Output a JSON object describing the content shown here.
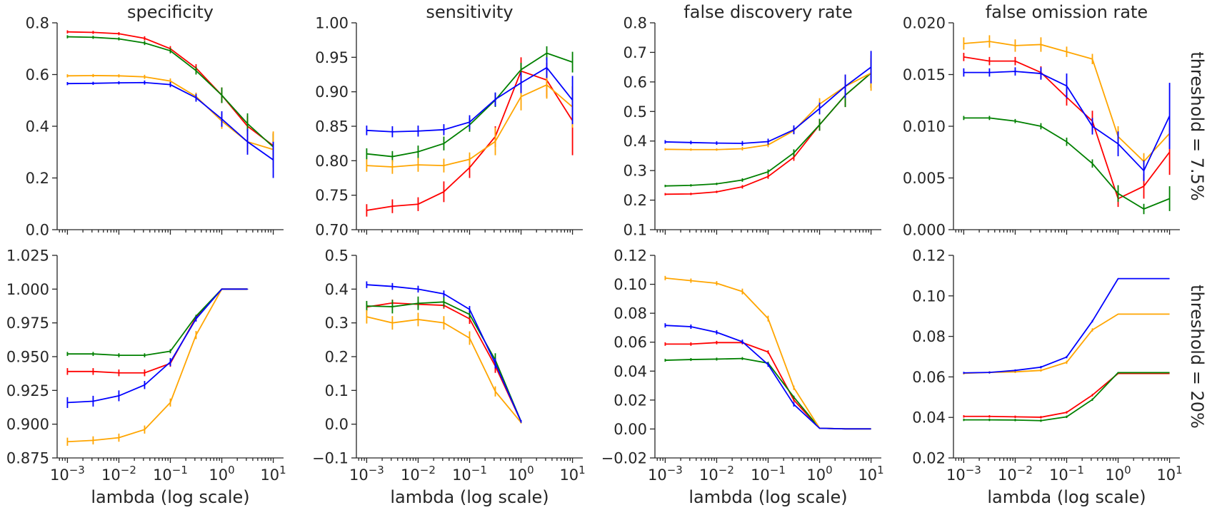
{
  "figure": {
    "xlabel": "lambda (log scale)",
    "col_titles": [
      "specificity",
      "sensitivity",
      "false discovery rate",
      "false omission rate"
    ],
    "row_labels": [
      "threshold = 7.5%",
      "threshold = 20%"
    ]
  },
  "series_colors": [
    "#ff0000",
    "#008000",
    "#ffa500",
    "#0000ff"
  ],
  "chart_data": [
    {
      "type": "line",
      "title": "specificity",
      "row_label": "threshold = 7.5%",
      "xscale": "log",
      "x": [
        0.001,
        0.00316,
        0.01,
        0.0316,
        0.1,
        0.316,
        1,
        3.16,
        10
      ],
      "ylim": [
        0.0,
        0.8
      ],
      "yticks": [
        "0.0",
        "0.2",
        "0.4",
        "0.6",
        "0.8"
      ],
      "series": [
        {
          "color": "#ff0000",
          "values": [
            0.765,
            0.763,
            0.758,
            0.74,
            0.7,
            0.625,
            0.52,
            0.4,
            0.325
          ],
          "err": [
            0.006,
            0.006,
            0.006,
            0.008,
            0.01,
            0.015,
            0.03,
            0.04,
            0.05
          ]
        },
        {
          "color": "#008000",
          "values": [
            0.746,
            0.744,
            0.738,
            0.722,
            0.692,
            0.615,
            0.52,
            0.41,
            0.32
          ],
          "err": [
            0.006,
            0.006,
            0.006,
            0.008,
            0.01,
            0.015,
            0.03,
            0.04,
            0.05
          ]
        },
        {
          "color": "#ffa500",
          "values": [
            0.595,
            0.596,
            0.595,
            0.591,
            0.575,
            0.515,
            0.42,
            0.34,
            0.31
          ],
          "err": [
            0.006,
            0.006,
            0.006,
            0.008,
            0.01,
            0.015,
            0.03,
            0.04,
            0.07
          ]
        },
        {
          "color": "#0000ff",
          "values": [
            0.565,
            0.566,
            0.568,
            0.569,
            0.561,
            0.51,
            0.428,
            0.34,
            0.27
          ],
          "err": [
            0.006,
            0.006,
            0.006,
            0.008,
            0.01,
            0.015,
            0.03,
            0.05,
            0.07
          ]
        }
      ]
    },
    {
      "type": "line",
      "title": "sensitivity",
      "row_label": "threshold = 7.5%",
      "xscale": "log",
      "x": [
        0.001,
        0.00316,
        0.01,
        0.0316,
        0.1,
        0.316,
        1,
        3.16,
        10
      ],
      "ylim": [
        0.7,
        1.0
      ],
      "yticks": [
        "0.70",
        "0.75",
        "0.80",
        "0.85",
        "0.90",
        "0.95",
        "1.00"
      ],
      "series": [
        {
          "color": "#ff0000",
          "values": [
            0.728,
            0.734,
            0.737,
            0.755,
            0.79,
            0.835,
            0.93,
            0.917,
            0.858
          ],
          "err": [
            0.009,
            0.01,
            0.01,
            0.015,
            0.015,
            0.015,
            0.02,
            0.025,
            0.05
          ]
        },
        {
          "color": "#008000",
          "values": [
            0.81,
            0.806,
            0.813,
            0.825,
            0.852,
            0.888,
            0.932,
            0.956,
            0.943
          ],
          "err": [
            0.008,
            0.008,
            0.009,
            0.01,
            0.01,
            0.01,
            0.01,
            0.01,
            0.015
          ]
        },
        {
          "color": "#ffa500",
          "values": [
            0.793,
            0.791,
            0.794,
            0.793,
            0.802,
            0.828,
            0.893,
            0.91,
            0.878
          ],
          "err": [
            0.009,
            0.01,
            0.01,
            0.01,
            0.01,
            0.02,
            0.02,
            0.02,
            0.03
          ]
        },
        {
          "color": "#0000ff",
          "values": [
            0.844,
            0.842,
            0.843,
            0.845,
            0.856,
            0.889,
            0.913,
            0.935,
            0.888
          ],
          "err": [
            0.007,
            0.008,
            0.008,
            0.008,
            0.01,
            0.01,
            0.015,
            0.015,
            0.035
          ]
        }
      ]
    },
    {
      "type": "line",
      "title": "false discovery rate",
      "row_label": "threshold = 7.5%",
      "xscale": "log",
      "x": [
        0.001,
        0.00316,
        0.01,
        0.0316,
        0.1,
        0.316,
        1,
        3.16,
        10
      ],
      "ylim": [
        0.1,
        0.8
      ],
      "yticks": [
        "0.1",
        "0.2",
        "0.3",
        "0.4",
        "0.5",
        "0.6",
        "0.7",
        "0.8"
      ],
      "series": [
        {
          "color": "#ff0000",
          "values": [
            0.22,
            0.221,
            0.228,
            0.245,
            0.28,
            0.345,
            0.455,
            0.555,
            0.63
          ],
          "err": [
            0.004,
            0.004,
            0.004,
            0.006,
            0.008,
            0.012,
            0.02,
            0.04,
            0.05
          ]
        },
        {
          "color": "#008000",
          "values": [
            0.248,
            0.25,
            0.255,
            0.268,
            0.296,
            0.36,
            0.455,
            0.555,
            0.63
          ],
          "err": [
            0.004,
            0.004,
            0.004,
            0.006,
            0.008,
            0.012,
            0.02,
            0.04,
            0.05
          ]
        },
        {
          "color": "#ffa500",
          "values": [
            0.372,
            0.371,
            0.371,
            0.374,
            0.387,
            0.435,
            0.525,
            0.585,
            0.63
          ],
          "err": [
            0.004,
            0.004,
            0.004,
            0.006,
            0.008,
            0.012,
            0.02,
            0.04,
            0.06
          ]
        },
        {
          "color": "#0000ff",
          "values": [
            0.397,
            0.395,
            0.393,
            0.392,
            0.398,
            0.438,
            0.51,
            0.585,
            0.65
          ],
          "err": [
            0.006,
            0.006,
            0.006,
            0.008,
            0.01,
            0.015,
            0.02,
            0.04,
            0.055
          ]
        }
      ]
    },
    {
      "type": "line",
      "title": "false omission rate",
      "row_label": "threshold = 7.5%",
      "xscale": "log",
      "x": [
        0.001,
        0.00316,
        0.01,
        0.0316,
        0.1,
        0.316,
        1,
        3.16,
        10
      ],
      "ylim": [
        0.0,
        0.02
      ],
      "yticks": [
        "0.000",
        "0.005",
        "0.010",
        "0.015",
        "0.020"
      ],
      "series": [
        {
          "color": "#ff0000",
          "values": [
            0.0167,
            0.0163,
            0.0163,
            0.0152,
            0.0128,
            0.0105,
            0.003,
            0.0042,
            0.0075
          ],
          "err": [
            0.0004,
            0.0004,
            0.0004,
            0.0006,
            0.0008,
            0.001,
            0.0008,
            0.0012,
            0.0022
          ]
        },
        {
          "color": "#008000",
          "values": [
            0.0108,
            0.0108,
            0.0105,
            0.01,
            0.0085,
            0.0064,
            0.0035,
            0.002,
            0.003
          ],
          "err": [
            0.0002,
            0.0002,
            0.0002,
            0.0003,
            0.0004,
            0.0004,
            0.0008,
            0.0005,
            0.0012
          ]
        },
        {
          "color": "#ffa500",
          "values": [
            0.018,
            0.0182,
            0.0178,
            0.0179,
            0.0172,
            0.0165,
            0.009,
            0.0066,
            0.0093
          ],
          "err": [
            0.0006,
            0.0006,
            0.0006,
            0.0007,
            0.0005,
            0.0005,
            0.001,
            0.0008,
            0.001
          ]
        },
        {
          "color": "#0000ff",
          "values": [
            0.0152,
            0.0152,
            0.0153,
            0.0151,
            0.0139,
            0.01,
            0.0083,
            0.0057,
            0.011
          ],
          "err": [
            0.0004,
            0.0004,
            0.0004,
            0.0006,
            0.0012,
            0.0008,
            0.0012,
            0.001,
            0.0032
          ]
        }
      ]
    },
    {
      "type": "line",
      "title": "",
      "row_label": "threshold = 20%",
      "xscale": "log",
      "x": [
        0.001,
        0.00316,
        0.01,
        0.0316,
        0.1,
        0.316,
        1,
        3.16,
        10
      ],
      "ylim": [
        0.875,
        1.025
      ],
      "yticks": [
        "0.875",
        "0.900",
        "0.925",
        "0.950",
        "0.975",
        "1.000",
        "1.025"
      ],
      "series": [
        {
          "color": "#ff0000",
          "values": [
            0.939,
            0.939,
            0.938,
            0.938,
            0.945,
            0.979,
            1.0,
            1.0,
            null
          ],
          "err": [
            0.0025,
            0.0025,
            0.0025,
            0.0025,
            0.0025,
            0.0015,
            0.0003,
            0.0002,
            null
          ]
        },
        {
          "color": "#008000",
          "values": [
            0.952,
            0.952,
            0.951,
            0.951,
            0.954,
            0.98,
            1.0,
            1.0,
            null
          ],
          "err": [
            0.0015,
            0.0015,
            0.0015,
            0.0015,
            0.0015,
            0.001,
            0.0003,
            0.0002,
            null
          ]
        },
        {
          "color": "#ffa500",
          "values": [
            0.887,
            0.888,
            0.89,
            0.896,
            0.916,
            0.966,
            1.0,
            1.0,
            null
          ],
          "err": [
            0.003,
            0.003,
            0.003,
            0.003,
            0.003,
            0.003,
            0.0003,
            0.0002,
            null
          ]
        },
        {
          "color": "#0000ff",
          "values": [
            0.916,
            0.917,
            0.921,
            0.929,
            0.946,
            0.978,
            1.0,
            1.0,
            null
          ],
          "err": [
            0.004,
            0.004,
            0.004,
            0.003,
            0.003,
            0.002,
            0.0003,
            0.0002,
            null
          ]
        }
      ]
    },
    {
      "type": "line",
      "title": "",
      "row_label": "threshold = 20%",
      "xscale": "log",
      "x": [
        0.001,
        0.00316,
        0.01,
        0.0316,
        0.1,
        0.316,
        1,
        3.16,
        10
      ],
      "ylim": [
        -0.1,
        0.5
      ],
      "yticks": [
        "−0.1",
        "0.0",
        "0.1",
        "0.2",
        "0.3",
        "0.4",
        "0.5"
      ],
      "series": [
        {
          "color": "#ff0000",
          "values": [
            0.347,
            0.359,
            0.355,
            0.352,
            0.312,
            0.172,
            0.008,
            null,
            null
          ],
          "err": [
            0.01,
            0.01,
            0.01,
            0.01,
            0.015,
            0.02,
            0.004,
            null,
            null
          ]
        },
        {
          "color": "#008000",
          "values": [
            0.35,
            0.348,
            0.358,
            0.362,
            0.325,
            0.19,
            0.008,
            null,
            null
          ],
          "err": [
            0.015,
            0.02,
            0.02,
            0.015,
            0.01,
            0.02,
            0.004,
            null,
            null
          ]
        },
        {
          "color": "#ffa500",
          "values": [
            0.318,
            0.3,
            0.31,
            0.3,
            0.255,
            0.097,
            0.005,
            null,
            null
          ],
          "err": [
            0.02,
            0.02,
            0.02,
            0.02,
            0.02,
            0.015,
            0.003,
            null,
            null
          ]
        },
        {
          "color": "#0000ff",
          "values": [
            0.413,
            0.408,
            0.4,
            0.386,
            0.34,
            0.18,
            0.008,
            null,
            null
          ],
          "err": [
            0.01,
            0.01,
            0.01,
            0.01,
            0.01,
            0.015,
            0.004,
            null,
            null
          ]
        }
      ]
    },
    {
      "type": "line",
      "title": "",
      "row_label": "threshold = 20%",
      "xscale": "log",
      "x": [
        0.001,
        0.00316,
        0.01,
        0.0316,
        0.1,
        0.316,
        1,
        3.16,
        10
      ],
      "ylim": [
        -0.02,
        0.12
      ],
      "yticks": [
        "−0.02",
        "0.00",
        "0.02",
        "0.04",
        "0.06",
        "0.08",
        "0.10",
        "0.12"
      ],
      "series": [
        {
          "color": "#ff0000",
          "values": [
            0.0587,
            0.0587,
            0.0597,
            0.0597,
            0.0532,
            0.02,
            0.0005,
            0.0001,
            0.0001
          ],
          "err": [
            0.0012,
            0.0012,
            0.0012,
            0.0012,
            0.0012,
            0.0012,
            0.0003,
            null,
            null
          ]
        },
        {
          "color": "#008000",
          "values": [
            0.0475,
            0.048,
            0.0483,
            0.0487,
            0.0455,
            0.022,
            0.0005,
            0.0001,
            0.0001
          ],
          "err": [
            0.001,
            0.001,
            0.001,
            0.001,
            0.001,
            0.001,
            0.0003,
            null,
            null
          ]
        },
        {
          "color": "#ffa500",
          "values": [
            0.1043,
            0.1025,
            0.1007,
            0.095,
            0.0763,
            0.0285,
            0.0005,
            0.0001,
            0.0001
          ],
          "err": [
            0.0015,
            0.0015,
            0.0015,
            0.002,
            0.002,
            0.0015,
            0.0003,
            null,
            null
          ]
        },
        {
          "color": "#0000ff",
          "values": [
            0.0716,
            0.0707,
            0.0668,
            0.0603,
            0.0445,
            0.017,
            0.0005,
            0.0001,
            0.0001
          ],
          "err": [
            0.0015,
            0.0015,
            0.0015,
            0.0015,
            0.0015,
            0.0015,
            0.0003,
            null,
            null
          ]
        }
      ]
    },
    {
      "type": "line",
      "title": "",
      "row_label": "threshold = 20%",
      "xscale": "log",
      "x": [
        0.001,
        0.00316,
        0.01,
        0.0316,
        0.1,
        0.316,
        1,
        3.16,
        10
      ],
      "ylim": [
        0.02,
        0.12
      ],
      "yticks": [
        "0.02",
        "0.04",
        "0.06",
        "0.08",
        "0.10",
        "0.12"
      ],
      "series": [
        {
          "color": "#ff0000",
          "values": [
            0.0405,
            0.0405,
            0.0403,
            0.0401,
            0.0425,
            0.051,
            0.0617,
            0.0617,
            0.0617
          ],
          "err": [
            0.0006,
            0.0006,
            0.0006,
            0.0006,
            0.0006,
            0.0006,
            0.0003,
            null,
            null
          ]
        },
        {
          "color": "#008000",
          "values": [
            0.0388,
            0.0388,
            0.0387,
            0.0384,
            0.0403,
            0.0488,
            0.0621,
            0.0621,
            0.0621
          ],
          "err": [
            0.0006,
            0.0006,
            0.0006,
            0.0006,
            0.0006,
            0.0006,
            0.0003,
            null,
            null
          ]
        },
        {
          "color": "#ffa500",
          "values": [
            0.0618,
            0.0622,
            0.0625,
            0.0632,
            0.0672,
            0.0832,
            0.091,
            0.091,
            0.091
          ],
          "err": [
            0.0006,
            0.0006,
            0.0006,
            0.0006,
            0.0008,
            0.0008,
            null,
            null,
            null
          ]
        },
        {
          "color": "#0000ff",
          "values": [
            0.062,
            0.0622,
            0.0632,
            0.0648,
            0.0698,
            0.0875,
            0.1085,
            0.1085,
            0.1085
          ],
          "err": [
            0.0005,
            0.0005,
            0.0005,
            0.0006,
            0.0006,
            0.0006,
            null,
            null,
            null
          ]
        }
      ]
    }
  ]
}
